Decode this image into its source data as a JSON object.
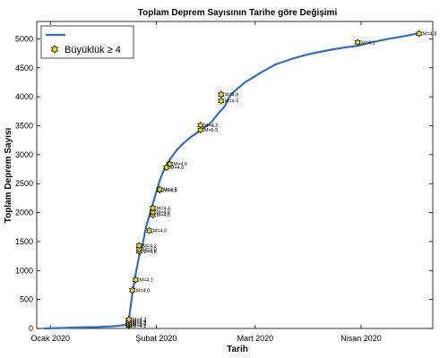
{
  "chart_data": {
    "type": "line",
    "title": "Toplam Deprem Sayısının Tarihe göre Değişimi",
    "xlabel": "Tarih",
    "ylabel": "Toplam Deprem Sayısı",
    "ylim": [
      0,
      5300
    ],
    "yticks": [
      0,
      500,
      1000,
      1500,
      2000,
      2500,
      3000,
      3500,
      4000,
      4500,
      5000
    ],
    "xlim": [
      "2019-12-28",
      "2020-04-22"
    ],
    "xticks": [
      {
        "label": "Ocak 2020",
        "date": "2020-01-01"
      },
      {
        "label": "Şubat 2020",
        "date": "2020-02-01"
      },
      {
        "label": "Mart 2020",
        "date": "2020-03-01"
      },
      {
        "label": "Nisan 2020",
        "date": "2020-04-01"
      }
    ],
    "grid": false,
    "legend_position": "top-left",
    "colors": {
      "line": "#2f6fbf",
      "marker_fill": "#f2e200",
      "marker_edge": "#000000"
    },
    "series": [
      {
        "name": "",
        "x": [
          "2019-12-30",
          "2020-01-05",
          "2020-01-10",
          "2020-01-15",
          "2020-01-20",
          "2020-01-23",
          "2020-01-24",
          "2020-01-25",
          "2020-01-26",
          "2020-01-27",
          "2020-01-28",
          "2020-01-29",
          "2020-01-30",
          "2020-01-31",
          "2020-02-01",
          "2020-02-02",
          "2020-02-03",
          "2020-02-04",
          "2020-02-05",
          "2020-02-06",
          "2020-02-07",
          "2020-02-09",
          "2020-02-11",
          "2020-02-14",
          "2020-02-17",
          "2020-02-19",
          "2020-02-21",
          "2020-02-22",
          "2020-02-23",
          "2020-02-25",
          "2020-02-27",
          "2020-02-29",
          "2020-03-03",
          "2020-03-07",
          "2020-03-12",
          "2020-03-17",
          "2020-03-22",
          "2020-03-27",
          "2020-03-31",
          "2020-04-04",
          "2020-04-09",
          "2020-04-14",
          "2020-04-18"
        ],
        "values": [
          0,
          10,
          20,
          25,
          40,
          60,
          150,
          600,
          950,
          1250,
          1450,
          1750,
          1950,
          2150,
          2350,
          2550,
          2700,
          2820,
          2920,
          3000,
          3080,
          3200,
          3300,
          3420,
          3550,
          3700,
          3830,
          3950,
          4050,
          4150,
          4250,
          4320,
          4430,
          4560,
          4660,
          4740,
          4800,
          4850,
          4880,
          4940,
          5000,
          5050,
          5100
        ]
      },
      {
        "name": "Büyüklük ≥ 4",
        "points": [
          {
            "date": "2020-01-24",
            "value": 50,
            "label": "M=4.1"
          },
          {
            "date": "2020-01-24",
            "value": 70,
            "label": "M=4.6"
          },
          {
            "date": "2020-01-24",
            "value": 95,
            "label": "M=4.3"
          },
          {
            "date": "2020-01-24",
            "value": 125,
            "label": "M=4.4"
          },
          {
            "date": "2020-01-24",
            "value": 155,
            "label": "M=4.2"
          },
          {
            "date": "2020-01-25",
            "value": 660,
            "label": "M=4.0"
          },
          {
            "date": "2020-01-26",
            "value": 840,
            "label": "M=4.1"
          },
          {
            "date": "2020-01-27",
            "value": 1330,
            "label": "M=4.6"
          },
          {
            "date": "2020-01-27",
            "value": 1370,
            "label": "M=4.0"
          },
          {
            "date": "2020-01-27",
            "value": 1430,
            "label": "M=4.2"
          },
          {
            "date": "2020-01-30",
            "value": 1690,
            "label": "M=4.0"
          },
          {
            "date": "2020-01-31",
            "value": 1960,
            "label": "M=4.6"
          },
          {
            "date": "2020-01-31",
            "value": 2010,
            "label": "M=4.8"
          },
          {
            "date": "2020-01-31",
            "value": 2080,
            "label": "M=4.4"
          },
          {
            "date": "2020-02-02",
            "value": 2390,
            "label": "M=4.3"
          },
          {
            "date": "2020-02-02",
            "value": 2400,
            "label": "M=4.5"
          },
          {
            "date": "2020-02-04",
            "value": 2780,
            "label": "M=4.0"
          },
          {
            "date": "2020-02-05",
            "value": 2840,
            "label": "M=4.0"
          },
          {
            "date": "2020-02-14",
            "value": 3430,
            "label": "M=5.5"
          },
          {
            "date": "2020-02-14",
            "value": 3510,
            "label": "M=4.2"
          },
          {
            "date": "2020-02-20",
            "value": 3930,
            "label": "M=4.5"
          },
          {
            "date": "2020-02-20",
            "value": 4040,
            "label": "M=4.8"
          },
          {
            "date": "2020-03-31",
            "value": 4940,
            "label": "M=4.1"
          },
          {
            "date": "2020-04-18",
            "value": 5090,
            "label": "M=4.3"
          }
        ]
      }
    ],
    "legend": [
      {
        "label": ""
      },
      {
        "label": "Büyüklük ≥ 4"
      }
    ]
  }
}
